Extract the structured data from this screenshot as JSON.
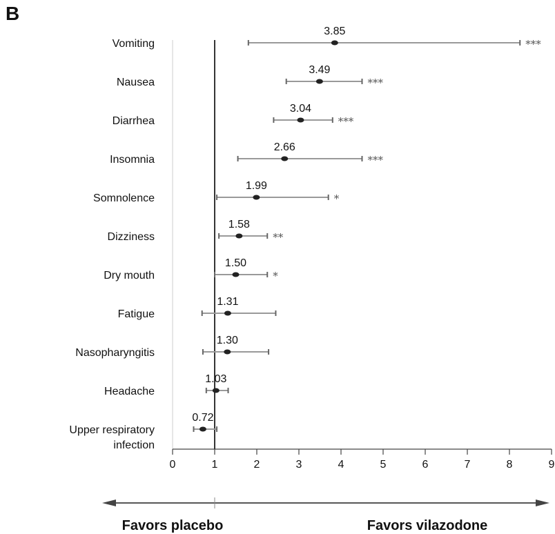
{
  "panel_label": "B",
  "chart_data": {
    "type": "forest",
    "categories": [
      "Vomiting",
      "Nausea",
      "Diarrhea",
      "Insomnia",
      "Somnolence",
      "Dizziness",
      "Dry mouth",
      "Fatigue",
      "Nasopharyngitis",
      "Headache",
      "Upper respiratory infection"
    ],
    "category_lines": [
      [
        "Vomiting"
      ],
      [
        "Nausea"
      ],
      [
        "Diarrhea"
      ],
      [
        "Insomnia"
      ],
      [
        "Somnolence"
      ],
      [
        "Dizziness"
      ],
      [
        "Dry mouth"
      ],
      [
        "Fatigue"
      ],
      [
        "Nasopharyngitis"
      ],
      [
        "Headache"
      ],
      [
        "Upper respiratory",
        "infection"
      ]
    ],
    "estimates": [
      3.85,
      3.49,
      3.04,
      2.66,
      1.99,
      1.58,
      1.5,
      1.31,
      1.3,
      1.03,
      0.72
    ],
    "estimate_labels": [
      "3.85",
      "3.49",
      "3.04",
      "2.66",
      "1.99",
      "1.58",
      "1.50",
      "1.31",
      "1.30",
      "1.03",
      "0.72"
    ],
    "ci_lower": [
      1.8,
      2.7,
      2.4,
      1.55,
      1.05,
      1.1,
      1.0,
      0.7,
      0.72,
      0.8,
      0.5
    ],
    "ci_upper": [
      8.25,
      4.5,
      3.8,
      4.5,
      3.7,
      2.25,
      2.25,
      2.45,
      2.28,
      1.32,
      1.05
    ],
    "significance": [
      "***",
      "***",
      "***",
      "***",
      "*",
      "**",
      "*",
      "",
      "",
      "",
      ""
    ],
    "reference_line": 1,
    "xlim": [
      0,
      9
    ],
    "xticks": [
      "0",
      "1",
      "2",
      "3",
      "4",
      "5",
      "6",
      "7",
      "8",
      "9"
    ],
    "direction_left": "Favors placebo",
    "direction_right": "Favors vilazodone",
    "colors": {
      "ci_line": "#999999",
      "marker": "#222222",
      "reference": "#333333",
      "axis": "#444444",
      "text": "#111111"
    }
  }
}
